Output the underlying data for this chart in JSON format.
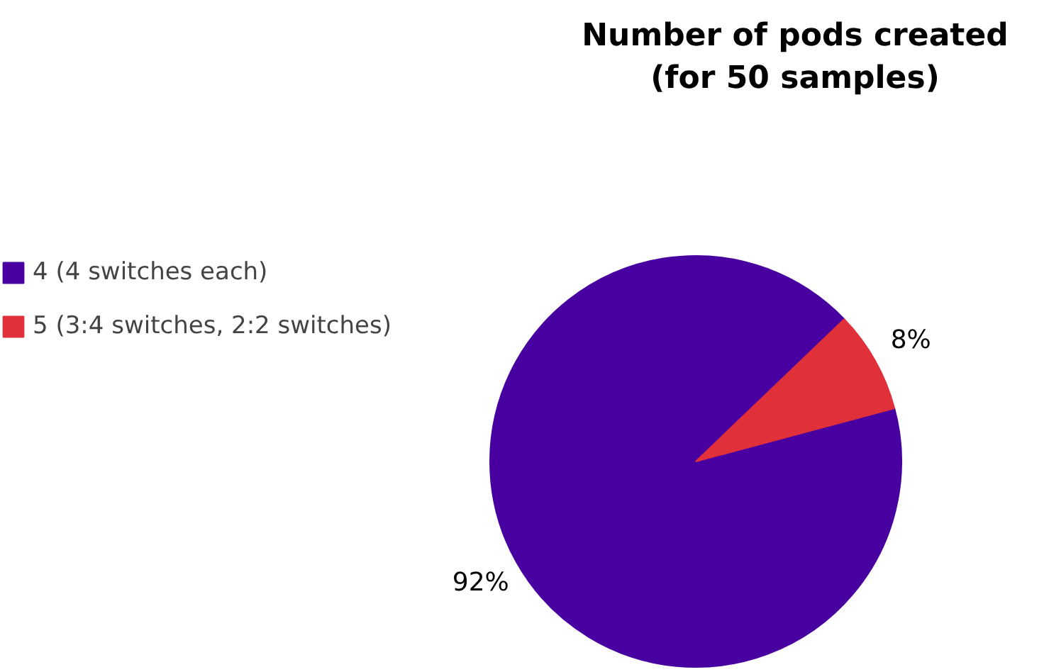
{
  "chart_data": {
    "type": "pie",
    "title": "Number of pods created\n(for 50 samples)",
    "categories": [
      "4 (4 switches each)",
      "5 (3:4 switches, 2:2 switches)"
    ],
    "values": [
      92,
      8
    ],
    "colors": [
      "#4800a0",
      "#e0303a"
    ],
    "value_labels": [
      "92%",
      "8%"
    ],
    "legend": "top left"
  }
}
